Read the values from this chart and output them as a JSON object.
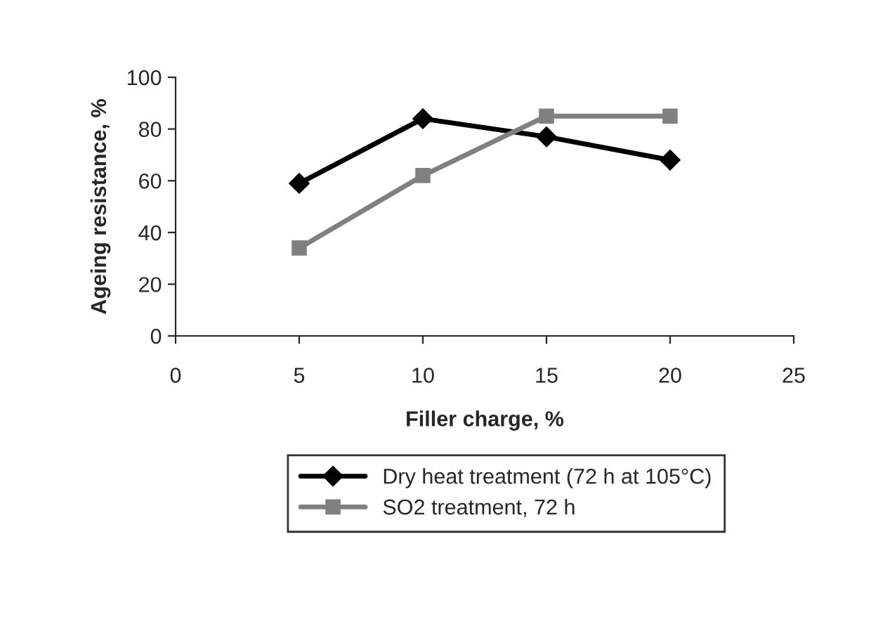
{
  "chart_data": {
    "type": "line",
    "xlabel": "Filler charge, %",
    "ylabel": "Ageing resistance, %",
    "xlim": [
      0,
      25
    ],
    "xticks": [
      0,
      5,
      10,
      15,
      20,
      25
    ],
    "ylim": [
      0,
      100
    ],
    "yticks": [
      0,
      20,
      40,
      60,
      80,
      100
    ],
    "x": [
      5,
      10,
      15,
      20
    ],
    "series": [
      {
        "name": "Dry heat treatment (72 h at 105°C)",
        "color": "#000000",
        "marker": "diamond",
        "values": [
          59,
          84,
          77,
          68
        ]
      },
      {
        "name": "SO2 treatment, 72 h",
        "color": "#808080",
        "marker": "square",
        "values": [
          34,
          62,
          85,
          85
        ]
      }
    ],
    "grid": false,
    "legend": "bottom",
    "line_style": "solid"
  }
}
